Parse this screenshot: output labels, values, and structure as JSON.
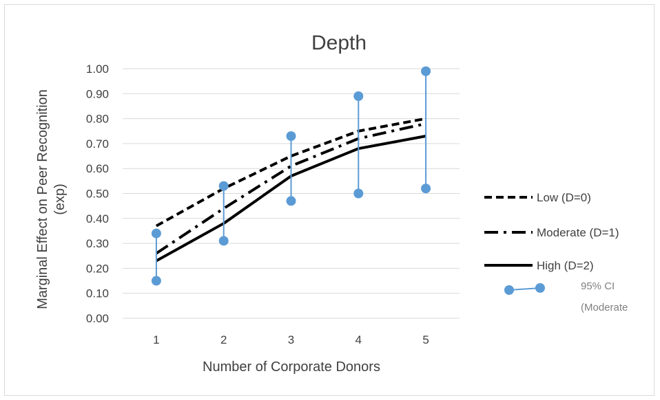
{
  "chart_data": {
    "type": "line",
    "title": "Depth",
    "xlabel": "Number of Corporate Donors",
    "ylabel_lines": [
      "Marginal Effect on Peer Recognition",
      "(exp)"
    ],
    "x": [
      1,
      2,
      3,
      4,
      5
    ],
    "x_tick_labels": [
      "1",
      "2",
      "3",
      "4",
      "5"
    ],
    "ylim": [
      0,
      1
    ],
    "y_ticks": [
      0,
      0.1,
      0.2,
      0.3,
      0.4,
      0.5,
      0.6,
      0.7,
      0.8,
      0.9,
      1.0
    ],
    "y_tick_labels": [
      "0.00",
      "0.10",
      "0.20",
      "0.30",
      "0.40",
      "0.50",
      "0.60",
      "0.70",
      "0.80",
      "0.90",
      "1.00"
    ],
    "grid": true,
    "legend_position": "right",
    "series": [
      {
        "name": "Low (D=0)",
        "style": "dashed",
        "color": "#000000",
        "values": [
          0.37,
          0.52,
          0.65,
          0.75,
          0.8
        ]
      },
      {
        "name": "Moderate (D=1)",
        "style": "dash-dot",
        "color": "#000000",
        "values": [
          0.26,
          0.44,
          0.61,
          0.72,
          0.78
        ]
      },
      {
        "name": "High (D=2)",
        "style": "solid",
        "color": "#000000",
        "values": [
          0.23,
          0.38,
          0.57,
          0.68,
          0.73
        ]
      }
    ],
    "ci": {
      "name_lines": [
        "95% CI",
        "(Moderate"
      ],
      "color": "#5b9bd5",
      "lower": [
        0.15,
        0.31,
        0.47,
        0.5,
        0.52
      ],
      "upper": [
        0.34,
        0.53,
        0.73,
        0.89,
        0.99
      ]
    }
  }
}
